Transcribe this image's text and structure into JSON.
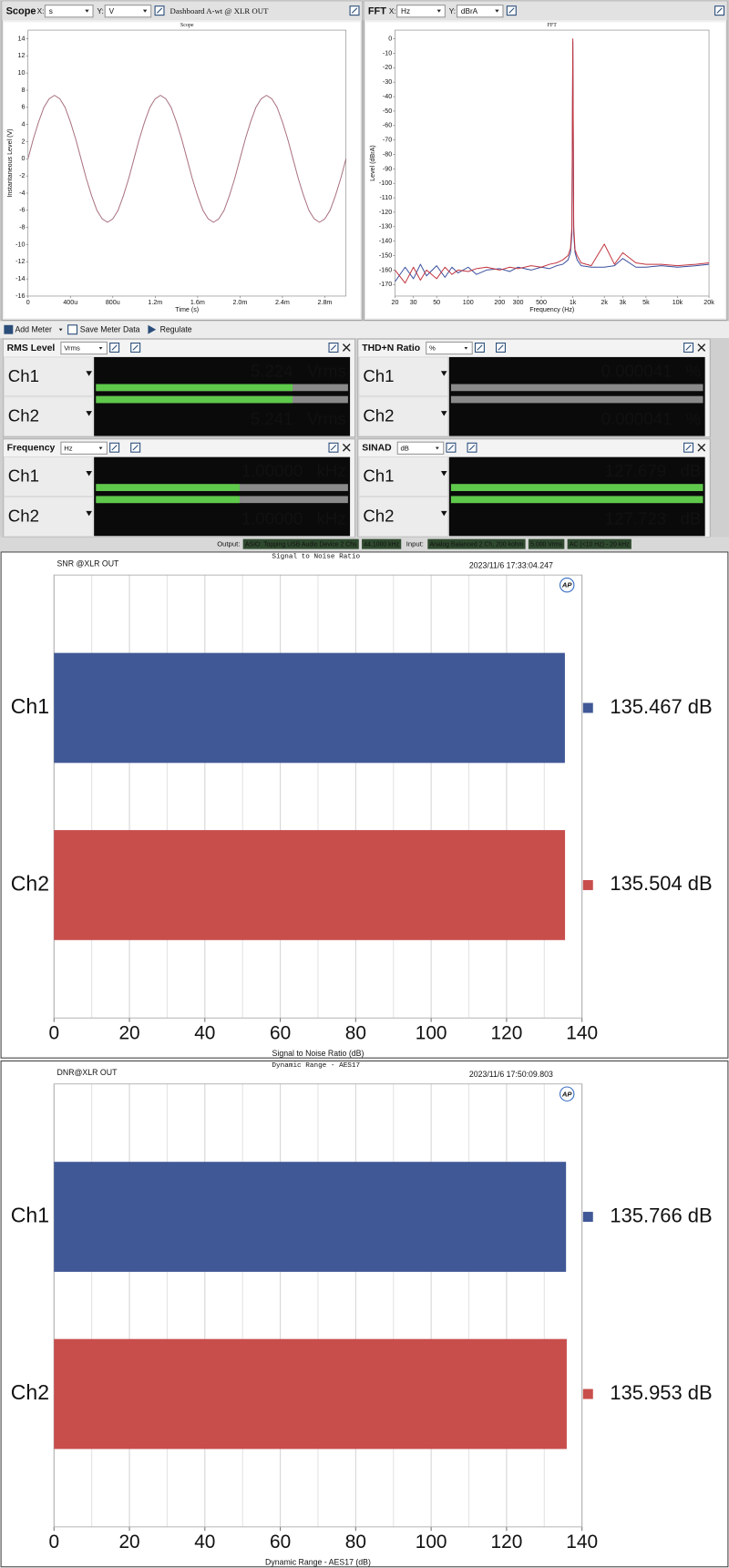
{
  "app": {
    "scope_header": {
      "title": "Scope",
      "x_label": "X:",
      "x_unit": "s",
      "y_label": "Y:",
      "y_unit": "V",
      "preset": "Dashboard A-wt @ XLR OUT"
    },
    "fft_header": {
      "title": "FFT",
      "x_label": "X:",
      "x_unit": "Hz",
      "y_label": "Y:",
      "y_unit": "dBrA"
    },
    "toolbar": [
      "Add Meter",
      "Save Meter Data",
      "Regulate"
    ],
    "meters": [
      {
        "title": "RMS Level",
        "unit": "Vrms",
        "rows": [
          {
            "channel": "Ch1",
            "value": "5.224",
            "unit": "Vrms"
          },
          {
            "channel": "Ch2",
            "value": "5.241",
            "unit": "Vrms"
          }
        ]
      },
      {
        "title": "THD+N Ratio",
        "unit": "%",
        "rows": [
          {
            "channel": "Ch1",
            "value": "0.000041",
            "unit": "%"
          },
          {
            "channel": "Ch2",
            "value": "0.000041",
            "unit": "%"
          }
        ]
      },
      {
        "title": "Frequency",
        "unit": "Hz",
        "rows": [
          {
            "channel": "Ch1",
            "value": "1.00000",
            "unit": "kHz"
          },
          {
            "channel": "Ch2",
            "value": "1.00000",
            "unit": "kHz"
          }
        ]
      },
      {
        "title": "SINAD",
        "unit": "dB",
        "rows": [
          {
            "channel": "Ch1",
            "value": "127.679",
            "unit": "dB"
          },
          {
            "channel": "Ch2",
            "value": "127.723",
            "unit": "dB"
          }
        ]
      }
    ],
    "status": {
      "output_label": "Output:",
      "output": [
        "ASIO: Topping USB Audio Device 2 Chs",
        "44.1000 kHz"
      ],
      "input_label": "Input:",
      "input": [
        "Analog Balanced 2 Ch, 200 kohm",
        "5.000 Vrms",
        "AC (<10 Hz) - 20 kHz"
      ]
    }
  },
  "chart_data": [
    {
      "type": "line",
      "title": "Scope",
      "xlabel": "Time (s)",
      "ylabel": "Instantaneous Level (V)",
      "x": [
        0,
        5e-05,
        0.0001,
        0.00015,
        0.0002,
        0.00025,
        0.0003,
        0.00035,
        0.0004,
        0.00045,
        0.0005,
        0.00055,
        0.0006,
        0.00065,
        0.0007,
        0.00075,
        0.0008,
        0.00085,
        0.0009,
        0.00095,
        0.001,
        0.00105,
        0.0011,
        0.00115,
        0.0012,
        0.00125,
        0.0013,
        0.00135,
        0.0014,
        0.00145,
        0.0015,
        0.00155,
        0.0016,
        0.00165,
        0.0017,
        0.00175,
        0.0018,
        0.00185,
        0.0019,
        0.00195,
        0.002,
        0.00205,
        0.0021,
        0.00215,
        0.0022,
        0.00225,
        0.0023,
        0.00235,
        0.0024,
        0.00245,
        0.0025,
        0.00255,
        0.0026,
        0.00265,
        0.0027,
        0.00275,
        0.0028,
        0.00285,
        0.0029,
        0.00295,
        0.003
      ],
      "series": [
        {
          "color": "#a8707e",
          "values": [
            0,
            2.3,
            4.3,
            6,
            7,
            7.4,
            7,
            6,
            4.3,
            2.3,
            0,
            -2.3,
            -4.3,
            -6,
            -7,
            -7.4,
            -7,
            -6,
            -4.3,
            -2.3,
            0,
            2.3,
            4.3,
            6,
            7,
            7.4,
            7,
            6,
            4.3,
            2.3,
            0,
            -2.3,
            -4.3,
            -6,
            -7,
            -7.4,
            -7,
            -6,
            -4.3,
            -2.3,
            0,
            2.3,
            4.3,
            6,
            7,
            7.4,
            7,
            6,
            4.3,
            2.3,
            0,
            -2.3,
            -4.3,
            -6,
            -7,
            -7.4,
            -7,
            -6,
            -4.3,
            -2.3,
            0
          ]
        }
      ],
      "xlim": [
        0,
        0.003
      ],
      "ylim": [
        -16,
        15
      ],
      "xticks": [
        0,
        {
          "value": 0.0004,
          "label": "400u"
        },
        {
          "value": 0.0008,
          "label": "800u"
        },
        {
          "value": 0.0012,
          "label": "1.2m"
        },
        {
          "value": 0.0016,
          "label": "1.6m"
        },
        {
          "value": 0.002,
          "label": "2.0m"
        },
        {
          "value": 0.0024,
          "label": "2.4m"
        },
        {
          "value": 0.0028,
          "label": "2.8m"
        }
      ],
      "yticks": [
        -16,
        -14,
        -12,
        -10,
        -8,
        -6,
        -4,
        -2,
        0,
        2,
        4,
        6,
        8,
        10,
        12,
        14
      ],
      "grid": false
    },
    {
      "type": "line",
      "title": "FFT",
      "xlabel": "Frequency (Hz)",
      "ylabel": "Level (dBrA)",
      "xscale": "log",
      "x": [
        20,
        25,
        30,
        35,
        40,
        50,
        60,
        70,
        80,
        100,
        120,
        150,
        200,
        250,
        300,
        400,
        500,
        600,
        700,
        800,
        900,
        950,
        980,
        1000,
        1020,
        1050,
        1100,
        1200,
        1500,
        2000,
        2500,
        3000,
        4000,
        5000,
        7000,
        10000,
        15000,
        20000
      ],
      "series": [
        {
          "color": "#3a4f9e",
          "values": [
            -168,
            -158,
            -166,
            -156,
            -164,
            -157,
            -165,
            -158,
            -162,
            -158,
            -163,
            -160,
            -159,
            -161,
            -158,
            -160,
            -158,
            -159,
            -157,
            -156,
            -153,
            -148,
            -135,
            -2,
            -135,
            -148,
            -153,
            -157,
            -158,
            -158,
            -157,
            -152,
            -158,
            -158,
            -157,
            -158,
            -157,
            -156
          ]
        },
        {
          "color": "#c2333d",
          "values": [
            -160,
            -169,
            -158,
            -167,
            -160,
            -166,
            -158,
            -163,
            -160,
            -161,
            -159,
            -158,
            -160,
            -158,
            -159,
            -157,
            -158,
            -156,
            -155,
            -153,
            -150,
            -145,
            -130,
            0,
            -130,
            -146,
            -150,
            -155,
            -157,
            -142,
            -156,
            -148,
            -155,
            -156,
            -156,
            -157,
            -156,
            -155
          ]
        }
      ],
      "xlim": [
        20,
        20000
      ],
      "ylim": [
        -178,
        6
      ],
      "xticks": [
        20,
        30,
        50,
        100,
        200,
        300,
        500,
        {
          "value": 1000,
          "label": "1k"
        },
        {
          "value": 2000,
          "label": "2k"
        },
        {
          "value": 3000,
          "label": "3k"
        },
        {
          "value": 5000,
          "label": "5k"
        },
        {
          "value": 10000,
          "label": "10k"
        },
        {
          "value": 20000,
          "label": "20k"
        }
      ],
      "yticks": [
        0,
        -10,
        -20,
        -30,
        -40,
        -50,
        -60,
        -70,
        -80,
        -90,
        -100,
        -110,
        -120,
        -130,
        -140,
        -150,
        -160,
        -170
      ],
      "grid": false
    },
    {
      "type": "barh",
      "header": "SNR @XLR OUT",
      "title": "Signal to Noise Ratio",
      "timestamp": "2023/11/6 17:33:04.247",
      "logo": "AP",
      "xlabel": "Signal to Noise Ratio (dB)",
      "categories": [
        "Ch1",
        "Ch2"
      ],
      "values": [
        135.467,
        135.504
      ],
      "value_labels": [
        "135.467 dB",
        "135.504 dB"
      ],
      "colors": [
        "#405896",
        "#c84e4c"
      ],
      "xlim": [
        0,
        140
      ],
      "xticks": [
        0,
        20,
        40,
        60,
        80,
        100,
        120,
        140
      ],
      "xminorticks": [
        10,
        30,
        50,
        70,
        90,
        110,
        130
      ],
      "grid": true
    },
    {
      "type": "barh",
      "header": "DNR@XLR OUT",
      "title": "Dynamic Range - AES17",
      "timestamp": "2023/11/6 17:50:09.803",
      "logo": "AP",
      "xlabel": "Dynamic Range - AES17 (dB)",
      "categories": [
        "Ch1",
        "Ch2"
      ],
      "values": [
        135.766,
        135.953
      ],
      "value_labels": [
        "135.766 dB",
        "135.953 dB"
      ],
      "colors": [
        "#405896",
        "#c84e4c"
      ],
      "xlim": [
        0,
        140
      ],
      "xticks": [
        0,
        20,
        40,
        60,
        80,
        100,
        120,
        140
      ],
      "xminorticks": [
        10,
        30,
        50,
        70,
        90,
        110,
        130
      ],
      "grid": true
    }
  ]
}
